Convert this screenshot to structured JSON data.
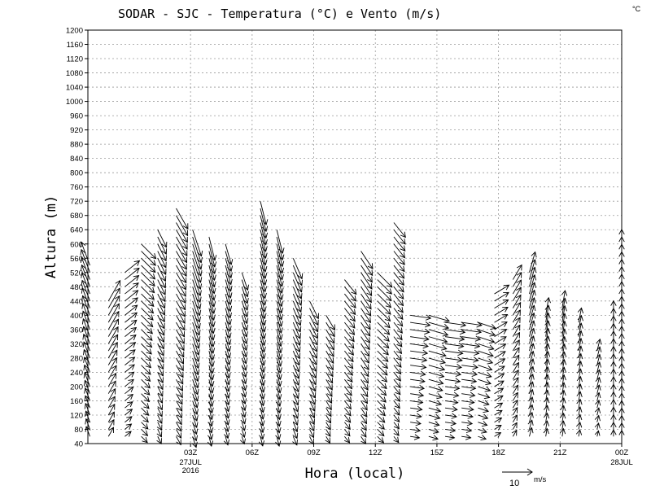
{
  "chart_data": {
    "type": "vector-field",
    "title": "SODAR - SJC - Temperatura (°C) e Vento (m/s)",
    "corner_label": "°C",
    "xlabel": "Hora (local)",
    "ylabel": "Altura (m)",
    "ylim": [
      40,
      1200
    ],
    "xlim_hours": [
      22,
      48
    ],
    "yticks": [
      40,
      80,
      120,
      160,
      200,
      240,
      280,
      320,
      360,
      400,
      440,
      480,
      520,
      560,
      600,
      640,
      680,
      720,
      760,
      800,
      840,
      880,
      920,
      960,
      1000,
      1040,
      1080,
      1120,
      1160,
      1200
    ],
    "xticks": [
      {
        "hour": 27,
        "label": "03Z",
        "sub": [
          "27JUL",
          "2016"
        ]
      },
      {
        "hour": 30,
        "label": "06Z",
        "sub": []
      },
      {
        "hour": 33,
        "label": "09Z",
        "sub": []
      },
      {
        "hour": 36,
        "label": "12Z",
        "sub": []
      },
      {
        "hour": 39,
        "label": "15Z",
        "sub": []
      },
      {
        "hour": 42,
        "label": "18Z",
        "sub": []
      },
      {
        "hour": 45,
        "label": "21Z",
        "sub": []
      },
      {
        "hour": 48,
        "label": "00Z",
        "sub": [
          "28JUL"
        ]
      }
    ],
    "reference_vector": {
      "speed": 10,
      "unit": "m/s",
      "label": "10"
    },
    "columns": [
      {
        "hour": 22.1,
        "top": 540,
        "u": -3,
        "v": 8
      },
      {
        "hour": 23.0,
        "top": 440,
        "u": 4,
        "v": 7
      },
      {
        "hour": 23.8,
        "top": 520,
        "u": 5,
        "v": 4
      },
      {
        "hour": 24.6,
        "top": 600,
        "u": 5,
        "v": -5
      },
      {
        "hour": 25.4,
        "top": 640,
        "u": 3,
        "v": -6
      },
      {
        "hour": 26.3,
        "top": 700,
        "u": 4,
        "v": -7
      },
      {
        "hour": 27.1,
        "top": 640,
        "u": 3,
        "v": -9
      },
      {
        "hour": 27.9,
        "top": 620,
        "u": 2,
        "v": -8
      },
      {
        "hour": 28.7,
        "top": 600,
        "u": 2,
        "v": -7
      },
      {
        "hour": 29.5,
        "top": 520,
        "u": 2,
        "v": -6
      },
      {
        "hour": 30.4,
        "top": 720,
        "u": 2,
        "v": -8
      },
      {
        "hour": 31.2,
        "top": 640,
        "u": 2,
        "v": -8
      },
      {
        "hour": 32.0,
        "top": 560,
        "u": 3,
        "v": -7
      },
      {
        "hour": 32.8,
        "top": 440,
        "u": 3,
        "v": -6
      },
      {
        "hour": 33.6,
        "top": 400,
        "u": 3,
        "v": -5
      },
      {
        "hour": 34.5,
        "top": 500,
        "u": 4,
        "v": -5
      },
      {
        "hour": 35.3,
        "top": 580,
        "u": 4,
        "v": -6
      },
      {
        "hour": 36.1,
        "top": 520,
        "u": 5,
        "v": -5
      },
      {
        "hour": 36.9,
        "top": 660,
        "u": 4,
        "v": -5
      },
      {
        "hour": 37.7,
        "top": 400,
        "u": 7,
        "v": -1
      },
      {
        "hour": 38.6,
        "top": 400,
        "u": 7,
        "v": -2
      },
      {
        "hour": 39.4,
        "top": 380,
        "u": 7,
        "v": -1
      },
      {
        "hour": 40.2,
        "top": 390,
        "u": 7,
        "v": -1
      },
      {
        "hour": 41.0,
        "top": 380,
        "u": 6,
        "v": -2
      },
      {
        "hour": 41.8,
        "top": 460,
        "u": 5,
        "v": 3
      },
      {
        "hour": 42.7,
        "top": 500,
        "u": 3,
        "v": 5
      },
      {
        "hour": 43.5,
        "top": 520,
        "u": 2,
        "v": 7
      },
      {
        "hour": 44.3,
        "top": 400,
        "u": 1,
        "v": 6
      },
      {
        "hour": 45.1,
        "top": 420,
        "u": 1,
        "v": 6
      },
      {
        "hour": 45.9,
        "top": 390,
        "u": 1,
        "v": 5
      },
      {
        "hour": 46.8,
        "top": 300,
        "u": 1,
        "v": 4
      },
      {
        "hour": 47.6,
        "top": 410,
        "u": 0,
        "v": 5
      },
      {
        "hour": 48.0,
        "top": 610,
        "u": 0,
        "v": 5
      }
    ]
  }
}
